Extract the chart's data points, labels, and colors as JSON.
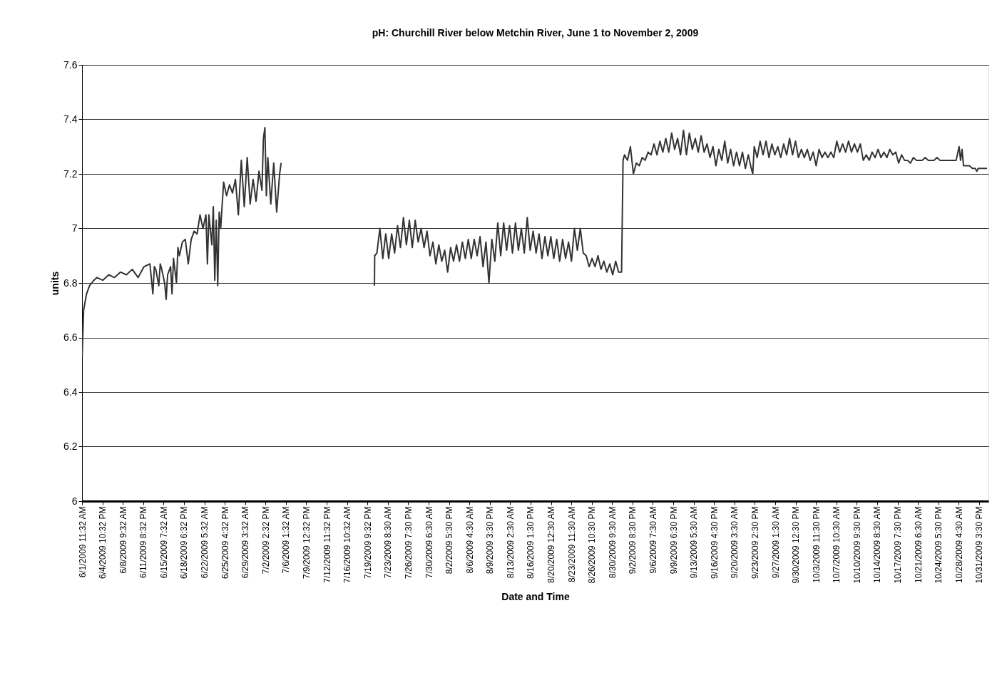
{
  "chart_data": {
    "type": "line",
    "title": "pH: Churchill River below Metchin River, June 1 to November 2, 2009",
    "xlabel": "Date and Time",
    "ylabel": "units",
    "x": [
      "2009-06-01T12:00",
      "2009-06-01T18:00",
      "2009-06-02T06:00",
      "2009-06-02T18:00",
      "2009-06-03T12:00",
      "2009-06-04T00:00",
      "2009-06-05T00:00",
      "2009-06-06T00:00",
      "2009-06-07T00:00",
      "2009-06-08T00:00",
      "2009-06-09T00:00",
      "2009-06-10T00:00",
      "2009-06-11T00:00",
      "2009-06-12T00:00",
      "2009-06-13T00:00",
      "2009-06-13T12:00",
      "2009-06-13T18:00",
      "2009-06-14T00:00",
      "2009-06-14T12:00",
      "2009-06-14T18:00",
      "2009-06-15T00:00",
      "2009-06-15T12:00",
      "2009-06-15T18:00",
      "2009-06-16T00:00",
      "2009-06-16T12:00",
      "2009-06-16T18:00",
      "2009-06-17T00:00",
      "2009-06-17T12:00",
      "2009-06-17T18:00",
      "2009-06-18T00:00",
      "2009-06-18T12:00",
      "2009-06-19T00:00",
      "2009-06-19T12:00",
      "2009-06-20T00:00",
      "2009-06-20T12:00",
      "2009-06-21T00:00",
      "2009-06-21T12:00",
      "2009-06-22T00:00",
      "2009-06-22T12:00",
      "2009-06-22T18:00",
      "2009-06-23T00:00",
      "2009-06-23T12:00",
      "2009-06-23T18:00",
      "2009-06-24T00:00",
      "2009-06-24T06:00",
      "2009-06-24T12:00",
      "2009-06-24T18:00",
      "2009-06-25T00:00",
      "2009-06-25T12:00",
      "2009-06-26T00:00",
      "2009-06-26T12:00",
      "2009-06-27T00:00",
      "2009-06-27T12:00",
      "2009-06-28T00:00",
      "2009-06-28T12:00",
      "2009-06-29T00:00",
      "2009-06-29T12:00",
      "2009-06-30T00:00",
      "2009-06-30T12:00",
      "2009-07-01T00:00",
      "2009-07-01T12:00",
      "2009-07-02T00:00",
      "2009-07-02T06:00",
      "2009-07-02T12:00",
      "2009-07-02T18:00",
      "2009-07-03T00:00",
      "2009-07-03T12:00",
      "2009-07-04T00:00",
      "2009-07-04T12:00",
      "2009-07-05T00:00",
      "2009-07-05T06:00",
      "2009-07-12T00:00",
      "2009-07-21T02:00",
      "2009-07-21T03:00",
      "2009-07-21T12:00",
      "2009-07-22T00:00",
      "2009-07-22T12:00",
      "2009-07-23T00:00",
      "2009-07-23T12:00",
      "2009-07-24T00:00",
      "2009-07-24T12:00",
      "2009-07-25T00:00",
      "2009-07-25T12:00",
      "2009-07-26T00:00",
      "2009-07-26T12:00",
      "2009-07-27T00:00",
      "2009-07-27T12:00",
      "2009-07-28T00:00",
      "2009-07-28T12:00",
      "2009-07-29T00:00",
      "2009-07-29T12:00",
      "2009-07-30T00:00",
      "2009-07-30T12:00",
      "2009-07-31T00:00",
      "2009-07-31T12:00",
      "2009-08-01T00:00",
      "2009-08-01T12:00",
      "2009-08-02T00:00",
      "2009-08-02T12:00",
      "2009-08-03T00:00",
      "2009-08-03T12:00",
      "2009-08-04T00:00",
      "2009-08-04T12:00",
      "2009-08-05T00:00",
      "2009-08-05T12:00",
      "2009-08-06T00:00",
      "2009-08-06T12:00",
      "2009-08-07T00:00",
      "2009-08-07T12:00",
      "2009-08-08T00:00",
      "2009-08-08T12:00",
      "2009-08-09T00:00",
      "2009-08-09T12:00",
      "2009-08-10T00:00",
      "2009-08-10T12:00",
      "2009-08-11T00:00",
      "2009-08-11T12:00",
      "2009-08-12T00:00",
      "2009-08-12T12:00",
      "2009-08-13T00:00",
      "2009-08-13T12:00",
      "2009-08-14T00:00",
      "2009-08-14T12:00",
      "2009-08-15T00:00",
      "2009-08-15T12:00",
      "2009-08-16T00:00",
      "2009-08-16T12:00",
      "2009-08-17T00:00",
      "2009-08-17T12:00",
      "2009-08-18T00:00",
      "2009-08-18T12:00",
      "2009-08-19T00:00",
      "2009-08-19T12:00",
      "2009-08-20T00:00",
      "2009-08-20T12:00",
      "2009-08-21T00:00",
      "2009-08-21T12:00",
      "2009-08-22T00:00",
      "2009-08-22T12:00",
      "2009-08-23T00:00",
      "2009-08-23T12:00",
      "2009-08-24T00:00",
      "2009-08-24T12:00",
      "2009-08-25T00:00",
      "2009-08-25T12:00",
      "2009-08-26T00:00",
      "2009-08-26T12:00",
      "2009-08-27T00:00",
      "2009-08-27T12:00",
      "2009-08-28T00:00",
      "2009-08-28T12:00",
      "2009-08-29T00:00",
      "2009-08-29T12:00",
      "2009-08-30T00:00",
      "2009-08-30T12:00",
      "2009-08-31T00:00",
      "2009-08-31T12:00",
      "2009-09-01T00:00",
      "2009-09-01T06:00",
      "2009-09-01T12:00",
      "2009-09-02T00:00",
      "2009-09-02T12:00",
      "2009-09-03T00:00",
      "2009-09-03T12:00",
      "2009-09-04T00:00",
      "2009-09-04T12:00",
      "2009-09-05T00:00",
      "2009-09-05T12:00",
      "2009-09-06T00:00",
      "2009-09-06T12:00",
      "2009-09-07T00:00",
      "2009-09-07T12:00",
      "2009-09-08T00:00",
      "2009-09-08T12:00",
      "2009-09-09T00:00",
      "2009-09-09T12:00",
      "2009-09-10T00:00",
      "2009-09-10T12:00",
      "2009-09-11T00:00",
      "2009-09-11T12:00",
      "2009-09-12T00:00",
      "2009-09-12T12:00",
      "2009-09-13T00:00",
      "2009-09-13T12:00",
      "2009-09-14T00:00",
      "2009-09-14T12:00",
      "2009-09-15T00:00",
      "2009-09-15T12:00",
      "2009-09-16T00:00",
      "2009-09-16T12:00",
      "2009-09-17T00:00",
      "2009-09-17T12:00",
      "2009-09-18T00:00",
      "2009-09-18T12:00",
      "2009-09-19T00:00",
      "2009-09-19T12:00",
      "2009-09-20T00:00",
      "2009-09-20T12:00",
      "2009-09-21T00:00",
      "2009-09-21T12:00",
      "2009-09-22T00:00",
      "2009-09-22T12:00",
      "2009-09-23T00:00",
      "2009-09-23T06:00",
      "2009-09-23T12:00",
      "2009-09-24T00:00",
      "2009-09-24T12:00",
      "2009-09-25T00:00",
      "2009-09-25T12:00",
      "2009-09-26T00:00",
      "2009-09-26T12:00",
      "2009-09-27T00:00",
      "2009-09-27T12:00",
      "2009-09-28T00:00",
      "2009-09-28T12:00",
      "2009-09-29T00:00",
      "2009-09-29T12:00",
      "2009-09-30T00:00",
      "2009-09-30T12:00",
      "2009-10-01T00:00",
      "2009-10-01T12:00",
      "2009-10-02T00:00",
      "2009-10-02T12:00",
      "2009-10-03T00:00",
      "2009-10-03T12:00",
      "2009-10-04T00:00",
      "2009-10-04T12:00",
      "2009-10-05T00:00",
      "2009-10-05T12:00",
      "2009-10-06T00:00",
      "2009-10-06T12:00",
      "2009-10-07T00:00",
      "2009-10-07T12:00",
      "2009-10-08T00:00",
      "2009-10-08T12:00",
      "2009-10-09T00:00",
      "2009-10-09T12:00",
      "2009-10-10T00:00",
      "2009-10-10T12:00",
      "2009-10-11T00:00",
      "2009-10-11T12:00",
      "2009-10-12T00:00",
      "2009-10-12T12:00",
      "2009-10-13T00:00",
      "2009-10-13T12:00",
      "2009-10-14T00:00",
      "2009-10-14T12:00",
      "2009-10-15T00:00",
      "2009-10-15T12:00",
      "2009-10-16T00:00",
      "2009-10-16T12:00",
      "2009-10-17T00:00",
      "2009-10-17T12:00",
      "2009-10-18T00:00",
      "2009-10-18T12:00",
      "2009-10-19T00:00",
      "2009-10-19T12:00",
      "2009-10-20T00:00",
      "2009-10-20T12:00",
      "2009-10-21T00:00",
      "2009-10-22T00:00",
      "2009-10-22T12:00",
      "2009-10-23T00:00",
      "2009-10-24T00:00",
      "2009-10-24T12:00",
      "2009-10-25T00:00",
      "2009-10-26T00:00",
      "2009-10-27T00:00",
      "2009-10-27T18:00",
      "2009-10-28T06:00",
      "2009-10-28T12:00",
      "2009-10-28T18:00",
      "2009-10-29T00:00",
      "2009-10-30T00:00",
      "2009-10-30T12:00",
      "2009-10-31T00:00",
      "2009-10-31T06:00",
      "2009-10-31T12:00",
      "2009-11-01T00:00",
      "2009-11-02T00:00"
    ],
    "series": [
      {
        "color": "#333333",
        "values": [
          6.53,
          6.7,
          6.76,
          6.79,
          6.81,
          6.82,
          6.81,
          6.83,
          6.82,
          6.84,
          6.83,
          6.85,
          6.82,
          6.86,
          6.87,
          6.76,
          6.86,
          6.85,
          6.79,
          6.87,
          6.85,
          6.8,
          6.74,
          6.83,
          6.86,
          6.76,
          6.89,
          6.8,
          6.93,
          6.9,
          6.95,
          6.96,
          6.87,
          6.96,
          6.99,
          6.98,
          7.05,
          7.0,
          7.05,
          6.87,
          7.05,
          6.94,
          7.08,
          6.81,
          7.03,
          6.79,
          7.06,
          7.0,
          7.17,
          7.12,
          7.16,
          7.13,
          7.18,
          7.05,
          7.25,
          7.08,
          7.26,
          7.09,
          7.18,
          7.1,
          7.21,
          7.14,
          7.33,
          7.37,
          7.12,
          7.26,
          7.09,
          7.24,
          7.06,
          7.2,
          7.24,
          null,
          6.79,
          6.9,
          6.91,
          7.0,
          6.89,
          6.98,
          6.89,
          6.98,
          6.91,
          7.01,
          6.93,
          7.04,
          6.94,
          7.03,
          6.93,
          7.03,
          6.95,
          7.0,
          6.93,
          6.99,
          6.9,
          6.95,
          6.87,
          6.94,
          6.88,
          6.92,
          6.84,
          6.93,
          6.88,
          6.94,
          6.88,
          6.95,
          6.89,
          6.96,
          6.89,
          6.96,
          6.9,
          6.97,
          6.86,
          6.95,
          6.8,
          6.96,
          6.88,
          7.02,
          6.9,
          7.02,
          6.92,
          7.01,
          6.91,
          7.02,
          6.92,
          7.0,
          6.91,
          7.04,
          6.92,
          6.99,
          6.91,
          6.98,
          6.89,
          6.97,
          6.9,
          6.97,
          6.89,
          6.96,
          6.88,
          6.96,
          6.89,
          6.95,
          6.88,
          7.0,
          6.92,
          7.0,
          6.91,
          6.9,
          6.86,
          6.89,
          6.86,
          6.9,
          6.85,
          6.88,
          6.84,
          6.87,
          6.83,
          6.88,
          6.84,
          6.84,
          7.25,
          7.27,
          7.25,
          7.3,
          7.2,
          7.24,
          7.23,
          7.26,
          7.25,
          7.28,
          7.27,
          7.31,
          7.27,
          7.32,
          7.28,
          7.33,
          7.28,
          7.35,
          7.29,
          7.33,
          7.27,
          7.36,
          7.27,
          7.35,
          7.29,
          7.33,
          7.28,
          7.34,
          7.28,
          7.31,
          7.26,
          7.3,
          7.23,
          7.29,
          7.25,
          7.32,
          7.24,
          7.29,
          7.23,
          7.28,
          7.23,
          7.28,
          7.22,
          7.27,
          7.22,
          7.2,
          7.3,
          7.26,
          7.32,
          7.27,
          7.32,
          7.26,
          7.31,
          7.27,
          7.3,
          7.26,
          7.31,
          7.27,
          7.33,
          7.27,
          7.32,
          7.26,
          7.29,
          7.26,
          7.29,
          7.25,
          7.28,
          7.23,
          7.29,
          7.26,
          7.28,
          7.26,
          7.28,
          7.26,
          7.32,
          7.28,
          7.31,
          7.28,
          7.32,
          7.28,
          7.31,
          7.28,
          7.31,
          7.25,
          7.27,
          7.25,
          7.28,
          7.26,
          7.29,
          7.26,
          7.28,
          7.26,
          7.29,
          7.27,
          7.28,
          7.24,
          7.27,
          7.25,
          7.25,
          7.24,
          7.26,
          7.25,
          7.25,
          7.26,
          7.25,
          7.25,
          7.26,
          7.25,
          7.25,
          7.25,
          7.25,
          7.3,
          7.25,
          7.29,
          7.23,
          7.23,
          7.22,
          7.22,
          7.21,
          7.22,
          7.22,
          7.22
        ]
      }
    ],
    "xlim": [
      "2009-06-01T11:32",
      "2009-11-02T05:30"
    ],
    "xticks": [
      {
        "value": "2009-06-01T11:32",
        "label": "6/1/2009 11:32 AM"
      },
      {
        "value": "2009-06-04T22:32",
        "label": "6/4/2009 10:32 PM"
      },
      {
        "value": "2009-06-08T09:32",
        "label": "6/8/2009 9:32 AM"
      },
      {
        "value": "2009-06-11T20:32",
        "label": "6/11/2009 8:32 PM"
      },
      {
        "value": "2009-06-15T07:32",
        "label": "6/15/2009 7:32 AM"
      },
      {
        "value": "2009-06-18T18:32",
        "label": "6/18/2009 6:32 PM"
      },
      {
        "value": "2009-06-22T05:32",
        "label": "6/22/2009 5:32 AM"
      },
      {
        "value": "2009-06-25T16:32",
        "label": "6/25/2009 4:32 PM"
      },
      {
        "value": "2009-06-29T03:32",
        "label": "6/29/2009 3:32 AM"
      },
      {
        "value": "2009-07-02T14:32",
        "label": "7/2/2009 2:32 PM"
      },
      {
        "value": "2009-07-06T01:32",
        "label": "7/6/2009 1:32 AM"
      },
      {
        "value": "2009-07-09T12:32",
        "label": "7/9/2009 12:32 PM"
      },
      {
        "value": "2009-07-12T23:32",
        "label": "7/12/2009 11:32 PM"
      },
      {
        "value": "2009-07-16T10:32",
        "label": "7/16/2009 10:32 AM"
      },
      {
        "value": "2009-07-19T21:32",
        "label": "7/19/2009 9:32 PM"
      },
      {
        "value": "2009-07-23T08:30",
        "label": "7/23/2009 8:30 AM"
      },
      {
        "value": "2009-07-26T19:30",
        "label": "7/26/2009 7:30 PM"
      },
      {
        "value": "2009-07-30T06:30",
        "label": "7/30/2009 6:30 AM"
      },
      {
        "value": "2009-08-02T17:30",
        "label": "8/2/2009 5:30 PM"
      },
      {
        "value": "2009-08-06T04:30",
        "label": "8/6/2009 4:30 AM"
      },
      {
        "value": "2009-08-09T15:30",
        "label": "8/9/2009 3:30 PM"
      },
      {
        "value": "2009-08-13T02:30",
        "label": "8/13/2009 2:30 AM"
      },
      {
        "value": "2009-08-16T13:30",
        "label": "8/16/2009 1:30 PM"
      },
      {
        "value": "2009-08-20T00:30",
        "label": "8/20/2009 12:30 AM"
      },
      {
        "value": "2009-08-23T11:30",
        "label": "8/23/2009 11:30 AM"
      },
      {
        "value": "2009-08-26T22:30",
        "label": "8/26/2009 10:30 PM"
      },
      {
        "value": "2009-08-30T09:30",
        "label": "8/30/2009 9:30 AM"
      },
      {
        "value": "2009-09-02T20:30",
        "label": "9/2/2009 8:30 PM"
      },
      {
        "value": "2009-09-06T07:30",
        "label": "9/6/2009 7:30 AM"
      },
      {
        "value": "2009-09-09T18:30",
        "label": "9/9/2009 6:30 PM"
      },
      {
        "value": "2009-09-13T05:30",
        "label": "9/13/2009 5:30 AM"
      },
      {
        "value": "2009-09-16T16:30",
        "label": "9/16/2009 4:30 PM"
      },
      {
        "value": "2009-09-20T03:30",
        "label": "9/20/2009 3:30 AM"
      },
      {
        "value": "2009-09-23T14:30",
        "label": "9/23/2009 2:30 PM"
      },
      {
        "value": "2009-09-27T01:30",
        "label": "9/27/2009 1:30 AM"
      },
      {
        "value": "2009-09-30T12:30",
        "label": "9/30/2009 12:30 PM"
      },
      {
        "value": "2009-10-03T23:30",
        "label": "10/3/2009 11:30 PM"
      },
      {
        "value": "2009-10-07T10:30",
        "label": "10/7/2009 10:30 AM"
      },
      {
        "value": "2009-10-10T21:30",
        "label": "10/10/2009 9:30 PM"
      },
      {
        "value": "2009-10-14T08:30",
        "label": "10/14/2009 8:30 AM"
      },
      {
        "value": "2009-10-17T19:30",
        "label": "10/17/2009 7:30 PM"
      },
      {
        "value": "2009-10-21T06:30",
        "label": "10/21/2009 6:30 AM"
      },
      {
        "value": "2009-10-24T17:30",
        "label": "10/24/2009 5:30 PM"
      },
      {
        "value": "2009-10-28T04:30",
        "label": "10/28/2009 4:30 AM"
      },
      {
        "value": "2009-10-31T15:30",
        "label": "10/31/2009 3:30 PM"
      }
    ],
    "ylim": [
      6,
      7.6
    ],
    "yticks": [
      6,
      6.2,
      6.4,
      6.6,
      6.8,
      7,
      7.2,
      7.4,
      7.6
    ],
    "grid": "y",
    "marker": "none",
    "line_style": "solid"
  }
}
